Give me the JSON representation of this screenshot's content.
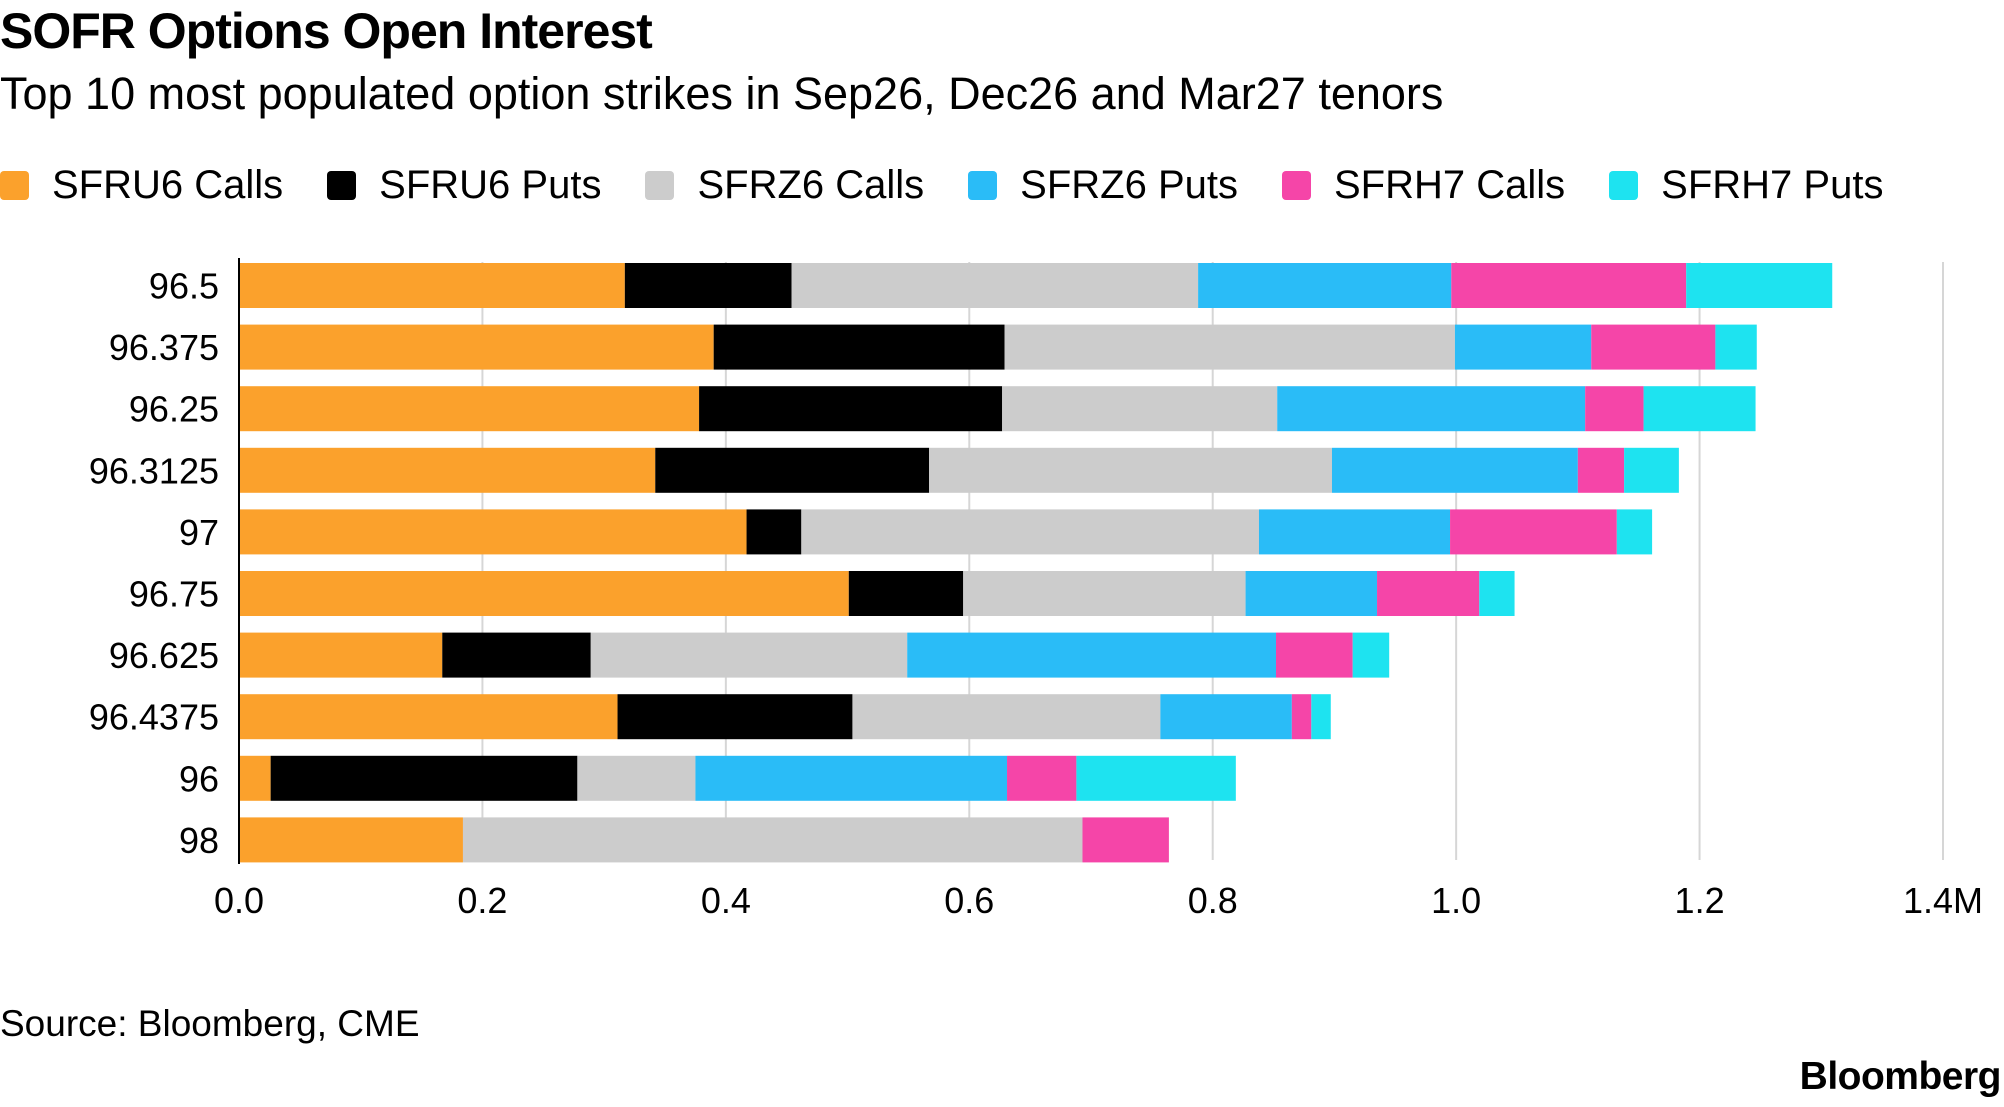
{
  "header": {
    "title": "SOFR Options Open Interest",
    "subtitle": "Top 10 most populated option strikes in Sep26, Dec26 and Mar27 tenors"
  },
  "footer": {
    "source": "Source: Bloomberg, CME",
    "logo": "Bloomberg"
  },
  "chart_data": {
    "type": "bar",
    "orientation": "horizontal",
    "stacked": true,
    "categories": [
      "96.5",
      "96.375",
      "96.25",
      "96.3125",
      "97",
      "96.75",
      "96.625",
      "96.4375",
      "96",
      "98"
    ],
    "series": [
      {
        "name": "SFRU6 Calls",
        "color": "#fba12c",
        "values": [
          0.317,
          0.39,
          0.378,
          0.342,
          0.417,
          0.501,
          0.167,
          0.311,
          0.026,
          0.184
        ]
      },
      {
        "name": "SFRU6 Puts",
        "color": "#000000",
        "values": [
          0.137,
          0.239,
          0.249,
          0.225,
          0.045,
          0.094,
          0.122,
          0.193,
          0.252,
          0.0
        ]
      },
      {
        "name": "SFRZ6 Calls",
        "color": "#cccccc",
        "values": [
          0.334,
          0.37,
          0.226,
          0.331,
          0.376,
          0.232,
          0.26,
          0.253,
          0.097,
          0.509
        ]
      },
      {
        "name": "SFRZ6 Puts",
        "color": "#2abcf7",
        "values": [
          0.208,
          0.112,
          0.253,
          0.202,
          0.157,
          0.108,
          0.303,
          0.108,
          0.256,
          0.0
        ]
      },
      {
        "name": "SFRH7 Calls",
        "color": "#f545a8",
        "values": [
          0.193,
          0.102,
          0.048,
          0.038,
          0.137,
          0.084,
          0.063,
          0.016,
          0.057,
          0.071
        ]
      },
      {
        "name": "SFRH7 Puts",
        "color": "#1ee3f0",
        "values": [
          0.12,
          0.034,
          0.092,
          0.045,
          0.029,
          0.029,
          0.03,
          0.016,
          0.131,
          0.0
        ]
      }
    ],
    "xlim": [
      0,
      1.4
    ],
    "xticks": [
      0,
      0.2,
      0.4,
      0.6,
      0.8,
      1.0,
      1.2,
      1.4
    ],
    "xtick_labels": [
      "0.0",
      "0.2",
      "0.4",
      "0.6",
      "0.8",
      "1.0",
      "1.2",
      "1.4M"
    ],
    "grid": true,
    "legend_position": "top"
  }
}
